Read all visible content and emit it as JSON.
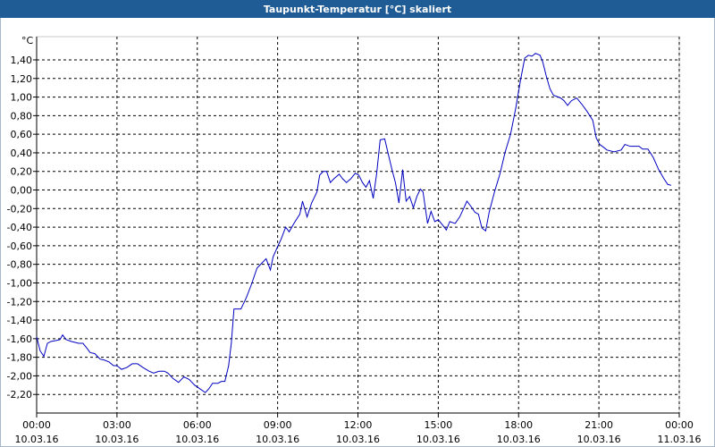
{
  "chart_data": {
    "type": "line",
    "title": "Taupunkt-Temperatur [°C] skaliert",
    "y_label": "°C",
    "color": "#0000c0",
    "grid": true,
    "xlim": [
      0,
      24
    ],
    "ylim": [
      -2.4,
      1.65
    ],
    "xticks": [
      {
        "value": 0,
        "label": "00:00\n10.03.16"
      },
      {
        "value": 3,
        "label": "03:00\n10.03.16"
      },
      {
        "value": 6,
        "label": "06:00\n10.03.16"
      },
      {
        "value": 9,
        "label": "09:00\n10.03.16"
      },
      {
        "value": 12,
        "label": "12:00\n10.03.16"
      },
      {
        "value": 15,
        "label": "15:00\n10.03.16"
      },
      {
        "value": 18,
        "label": "18:00\n10.03.16"
      },
      {
        "value": 21,
        "label": "21:00\n10.03.16"
      },
      {
        "value": 24,
        "label": "00:00\n11.03.16"
      }
    ],
    "yticks": [
      {
        "value": -2.2,
        "label": "-2,20"
      },
      {
        "value": -2.0,
        "label": "-2,00"
      },
      {
        "value": -1.8,
        "label": "-1,80"
      },
      {
        "value": -1.6,
        "label": "-1,60"
      },
      {
        "value": -1.4,
        "label": "-1,40"
      },
      {
        "value": -1.2,
        "label": "-1,20"
      },
      {
        "value": -1.0,
        "label": "-1,00"
      },
      {
        "value": -0.8,
        "label": "-0,80"
      },
      {
        "value": -0.6,
        "label": "-0,60"
      },
      {
        "value": -0.4,
        "label": "-0,40"
      },
      {
        "value": -0.2,
        "label": "-0,20"
      },
      {
        "value": 0,
        "label": "0,00"
      },
      {
        "value": 0.2,
        "label": "0,20"
      },
      {
        "value": 0.4,
        "label": "0,40"
      },
      {
        "value": 0.6,
        "label": "0,60"
      },
      {
        "value": 0.8,
        "label": "0,80"
      },
      {
        "value": 1.0,
        "label": "1,00"
      },
      {
        "value": 1.2,
        "label": "1,20"
      },
      {
        "value": 1.4,
        "label": "1,40"
      }
    ],
    "x": [
      0.0,
      0.13,
      0.27,
      0.4,
      0.53,
      0.73,
      0.87,
      0.97,
      1.1,
      1.3,
      1.57,
      1.73,
      1.87,
      2.0,
      2.17,
      2.37,
      2.53,
      2.7,
      2.87,
      3.0,
      3.17,
      3.37,
      3.57,
      3.77,
      3.97,
      4.2,
      4.37,
      4.57,
      4.77,
      4.9,
      5.1,
      5.3,
      5.5,
      5.7,
      5.9,
      6.1,
      6.3,
      6.43,
      6.57,
      6.77,
      6.9,
      7.03,
      7.17,
      7.27,
      7.37,
      7.5,
      7.63,
      7.83,
      8.03,
      8.23,
      8.4,
      8.57,
      8.73,
      8.83,
      9.03,
      9.13,
      9.3,
      9.43,
      9.63,
      9.83,
      9.93,
      10.1,
      10.27,
      10.47,
      10.57,
      10.7,
      10.83,
      10.97,
      11.1,
      11.3,
      11.43,
      11.57,
      11.73,
      11.9,
      12.03,
      12.17,
      12.3,
      12.43,
      12.57,
      12.7,
      12.83,
      13.0,
      13.13,
      13.27,
      13.4,
      13.53,
      13.67,
      13.8,
      13.93,
      14.07,
      14.2,
      14.33,
      14.43,
      14.6,
      14.73,
      14.87,
      15.0,
      15.17,
      15.3,
      15.43,
      15.63,
      15.8,
      15.93,
      16.07,
      16.23,
      16.37,
      16.5,
      16.63,
      16.77,
      16.9,
      17.1,
      17.3,
      17.5,
      17.7,
      17.9,
      18.07,
      18.23,
      18.37,
      18.5,
      18.63,
      18.8,
      18.9,
      19.03,
      19.17,
      19.3,
      19.57,
      19.7,
      19.83,
      19.97,
      20.17,
      20.37,
      20.57,
      20.77,
      20.9,
      21.03,
      21.17,
      21.3,
      21.57,
      21.83,
      21.97,
      22.17,
      22.37,
      22.5,
      22.63,
      22.83,
      23.03,
      23.23,
      23.43,
      23.57,
      23.7
    ],
    "values": [
      -1.58,
      -1.73,
      -1.79,
      -1.65,
      -1.63,
      -1.62,
      -1.61,
      -1.56,
      -1.61,
      -1.63,
      -1.65,
      -1.65,
      -1.7,
      -1.75,
      -1.76,
      -1.82,
      -1.83,
      -1.85,
      -1.89,
      -1.89,
      -1.93,
      -1.91,
      -1.87,
      -1.87,
      -1.91,
      -1.95,
      -1.97,
      -1.95,
      -1.95,
      -1.97,
      -2.03,
      -2.07,
      -2.01,
      -2.04,
      -2.1,
      -2.14,
      -2.18,
      -2.14,
      -2.08,
      -2.08,
      -2.06,
      -2.06,
      -1.89,
      -1.65,
      -1.28,
      -1.28,
      -1.28,
      -1.16,
      -1.01,
      -0.84,
      -0.79,
      -0.74,
      -0.86,
      -0.72,
      -0.59,
      -0.53,
      -0.4,
      -0.45,
      -0.35,
      -0.26,
      -0.12,
      -0.29,
      -0.14,
      -0.02,
      0.16,
      0.2,
      0.2,
      0.08,
      0.12,
      0.17,
      0.12,
      0.08,
      0.12,
      0.18,
      0.16,
      0.08,
      0.03,
      0.1,
      -0.09,
      0.18,
      0.54,
      0.55,
      0.39,
      0.22,
      0.08,
      -0.14,
      0.22,
      -0.12,
      -0.07,
      -0.19,
      -0.07,
      0.01,
      -0.02,
      -0.36,
      -0.23,
      -0.34,
      -0.32,
      -0.38,
      -0.43,
      -0.34,
      -0.36,
      -0.29,
      -0.21,
      -0.12,
      -0.18,
      -0.24,
      -0.26,
      -0.41,
      -0.44,
      -0.24,
      -0.02,
      0.17,
      0.41,
      0.6,
      0.89,
      1.18,
      1.42,
      1.45,
      1.44,
      1.47,
      1.45,
      1.38,
      1.23,
      1.09,
      1.02,
      0.99,
      0.96,
      0.91,
      0.96,
      0.99,
      0.92,
      0.84,
      0.75,
      0.56,
      0.49,
      0.46,
      0.43,
      0.41,
      0.43,
      0.49,
      0.47,
      0.47,
      0.47,
      0.44,
      0.44,
      0.35,
      0.22,
      0.12,
      0.06,
      0.05
    ]
  }
}
